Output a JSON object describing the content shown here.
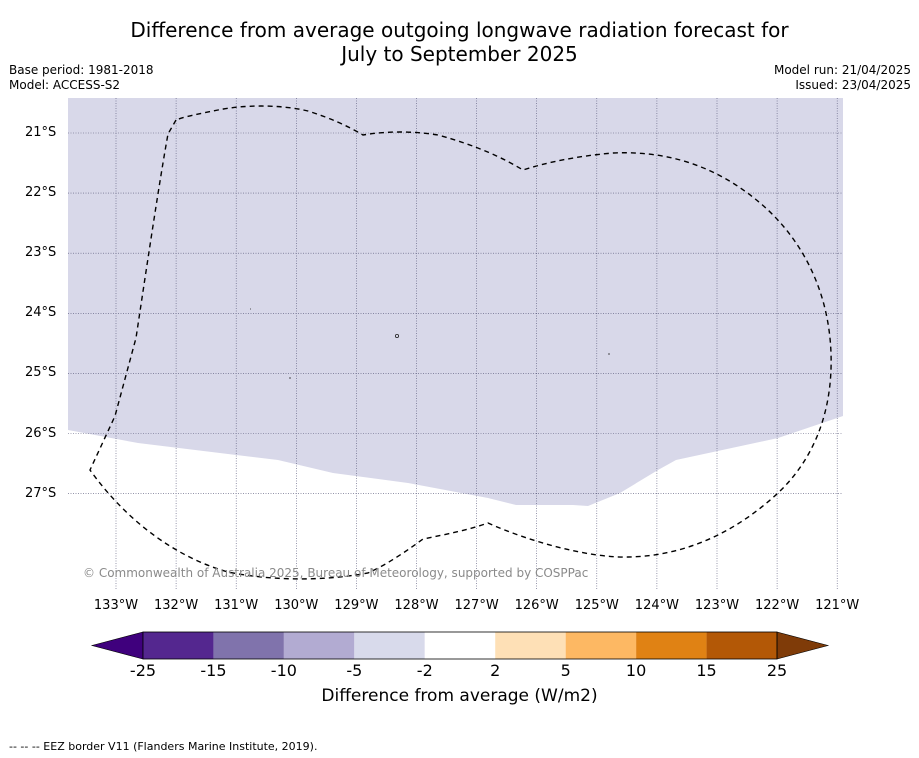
{
  "title": {
    "line1": "Difference from average outgoing longwave radiation forecast for",
    "line2": "July to September 2025"
  },
  "meta": {
    "base_period": "Base period: 1981-2018",
    "model": "Model: ACCESS-S2",
    "model_run": "Model run: 21/04/2025",
    "issued": "Issued: 23/04/2025"
  },
  "map": {
    "lat_labels": [
      "21°S",
      "22°S",
      "23°S",
      "24°S",
      "25°S",
      "26°S",
      "27°S"
    ],
    "lon_labels": [
      "133°W",
      "132°W",
      "131°W",
      "130°W",
      "129°W",
      "128°W",
      "127°W",
      "126°W",
      "125°W",
      "124°W",
      "123°W",
      "122°W",
      "121°W"
    ],
    "shaded_category": "-5 to -2",
    "shaded_color": "#d8d8e9",
    "copyright": "© Commonwealth of Australia 2025, Bureau of Meteorology, supported by COSPPac"
  },
  "colorbar": {
    "title": "Difference from average (W/m2)",
    "tick_labels": [
      "-25",
      "-15",
      "-10",
      "-5",
      "-2",
      "2",
      "5",
      "10",
      "15",
      "25"
    ],
    "colors": [
      "#3f007d",
      "#54278f",
      "#8073ac",
      "#b2abd2",
      "#d8daeb",
      "#ffffff",
      "#fee0b6",
      "#fdb863",
      "#e08214",
      "#b35806",
      "#7f3b08"
    ]
  },
  "legend_note": "--  --  -- EEZ border V11 (Flanders Marine Institute, 2019)."
}
